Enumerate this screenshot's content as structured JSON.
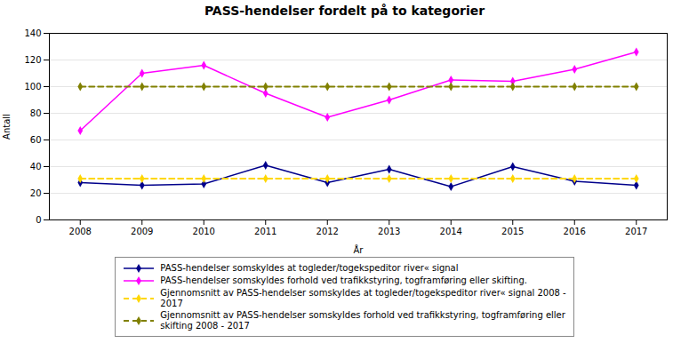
{
  "chart_data": {
    "type": "line",
    "title": "PASS-hendelser fordelt på to kategorier",
    "xlabel": "År",
    "ylabel": "Antall",
    "x": [
      2008,
      2009,
      2010,
      2011,
      2012,
      2013,
      2014,
      2015,
      2016,
      2017
    ],
    "series": [
      {
        "name": "PASS-hendelser somskyldes at togleder/togekspeditor ­river« signal",
        "color": "#00008B",
        "marker": "diamond",
        "line_style": "solid",
        "values": [
          28,
          26,
          27,
          41,
          28,
          38,
          25,
          40,
          29,
          26
        ]
      },
      {
        "name": "PASS-hendelser somskyldes forhold ved trafikkstyring, togframføring eller skifting.",
        "color": "#FF00FF",
        "marker": "diamond",
        "line_style": "solid",
        "values": [
          67,
          110,
          116,
          95,
          77,
          90,
          105,
          104,
          113,
          126
        ]
      },
      {
        "name": "Gjennomsnitt av PASS-hendelser somskyldes at togleder/togekspeditor ­river« signal 2008 -\n2017",
        "color": "#FFD700",
        "marker": "diamond",
        "line_style": "dashed",
        "values": [
          31,
          31,
          31,
          31,
          31,
          31,
          31,
          31,
          31,
          31
        ]
      },
      {
        "name": "Gjennomsnitt av PASS-hendelser somskyldes forhold ved trafikkstyring, togframføring eller\nskifting 2008 - 2017",
        "color": "#808000",
        "marker": "diamond",
        "line_style": "dashed",
        "values": [
          100,
          100,
          100,
          100,
          100,
          100,
          100,
          100,
          100,
          100
        ]
      }
    ],
    "xlim": [
      2007.5,
      2017.5
    ],
    "xticks": [
      2008,
      2009,
      2010,
      2011,
      2012,
      2013,
      2014,
      2015,
      2016,
      2017
    ],
    "ylim": [
      0,
      140
    ],
    "yticks": [
      0,
      20,
      40,
      60,
      80,
      100,
      120,
      140
    ],
    "grid": true,
    "legend": "bottom"
  }
}
